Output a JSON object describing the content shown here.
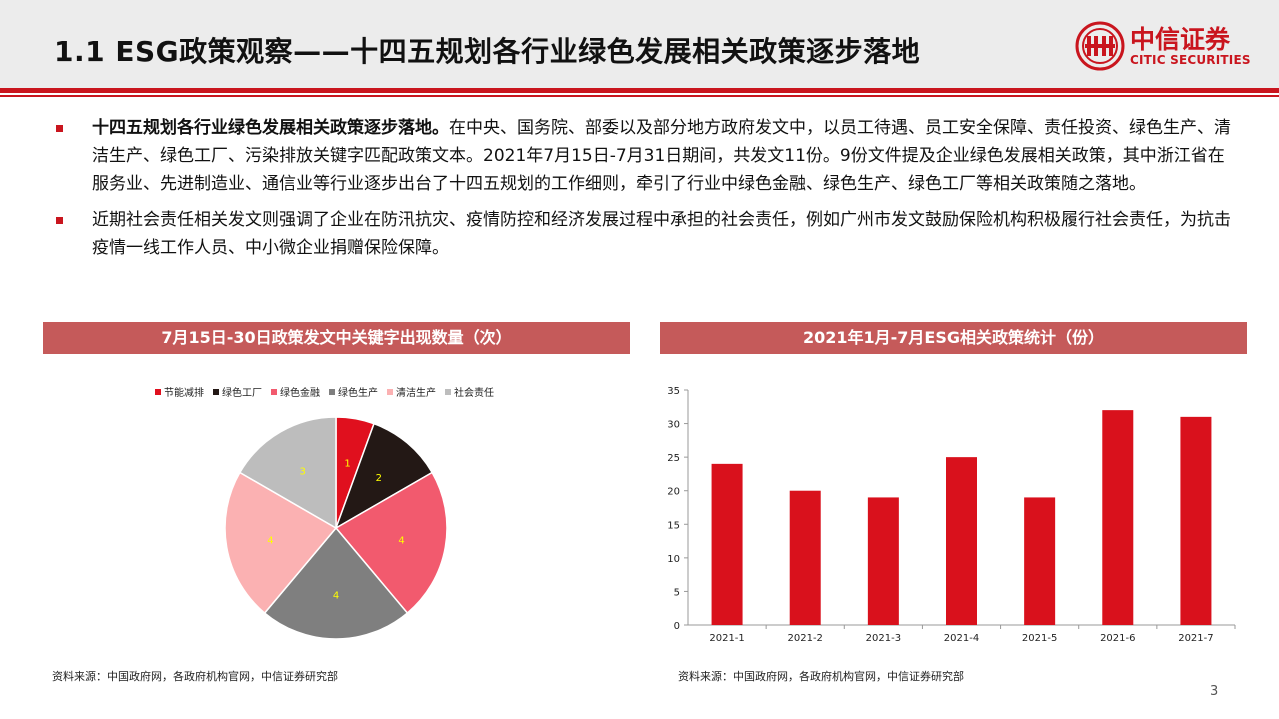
{
  "header": {
    "title": "1.1 ESG政策观察——十四五规划各行业绿色发展相关政策逐步落地",
    "logo_cn": "中信证券",
    "logo_en": "CITIC SECURITIES"
  },
  "bullets": [
    {
      "bold": "十四五规划各行业绿色发展相关政策逐步落地。",
      "text": "在中央、国务院、部委以及部分地方政府发文中，以员工待遇、员工安全保障、责任投资、绿色生产、清洁生产、绿色工厂、污染排放关键字匹配政策文本。2021年7月15日-7月31日期间，共发文11份。9份文件提及企业绿色发展相关政策，其中浙江省在服务业、先进制造业、通信业等行业逐步出台了十四五规划的工作细则，牵引了行业中绿色金融、绿色生产、绿色工厂等相关政策随之落地。"
    },
    {
      "bold": "",
      "text": "近期社会责任相关发文则强调了企业在防汛抗灾、疫情防控和经济发展过程中承担的社会责任，例如广州市发文鼓励保险机构积极履行社会责任，为抗击疫情一线工作人员、中小微企业捐赠保险保障。"
    }
  ],
  "chart_data": [
    {
      "type": "pie",
      "title": "7月15日-30日政策发文中关键字出现数量（次）",
      "categories": [
        "节能减排",
        "绿色工厂",
        "绿色金融",
        "绿色生产",
        "清洁生产",
        "社会责任"
      ],
      "values": [
        1,
        2,
        4,
        4,
        4,
        3
      ],
      "colors": [
        "#e0101e",
        "#231815",
        "#f25a6e",
        "#7f7f7f",
        "#fbb1b2",
        "#bdbdbd"
      ],
      "label_color": "#ffff00",
      "legend": "top"
    },
    {
      "type": "bar",
      "title": "2021年1月-7月ESG相关政策统计（份）",
      "categories": [
        "2021-1",
        "2021-2",
        "2021-3",
        "2021-4",
        "2021-5",
        "2021-6",
        "2021-7"
      ],
      "values": [
        24,
        20,
        19,
        25,
        19,
        32,
        31
      ],
      "color": "#d9111c",
      "ylim": [
        0,
        35
      ],
      "yticks": [
        0,
        5,
        10,
        15,
        20,
        25,
        30,
        35
      ],
      "grid": false
    }
  ],
  "sources": {
    "left": "资料来源：中国政府网，各政府机构官网，中信证券研究部",
    "right": "资料来源：中国政府网，各政府机构官网，中信证券研究部"
  },
  "page_number": "3"
}
